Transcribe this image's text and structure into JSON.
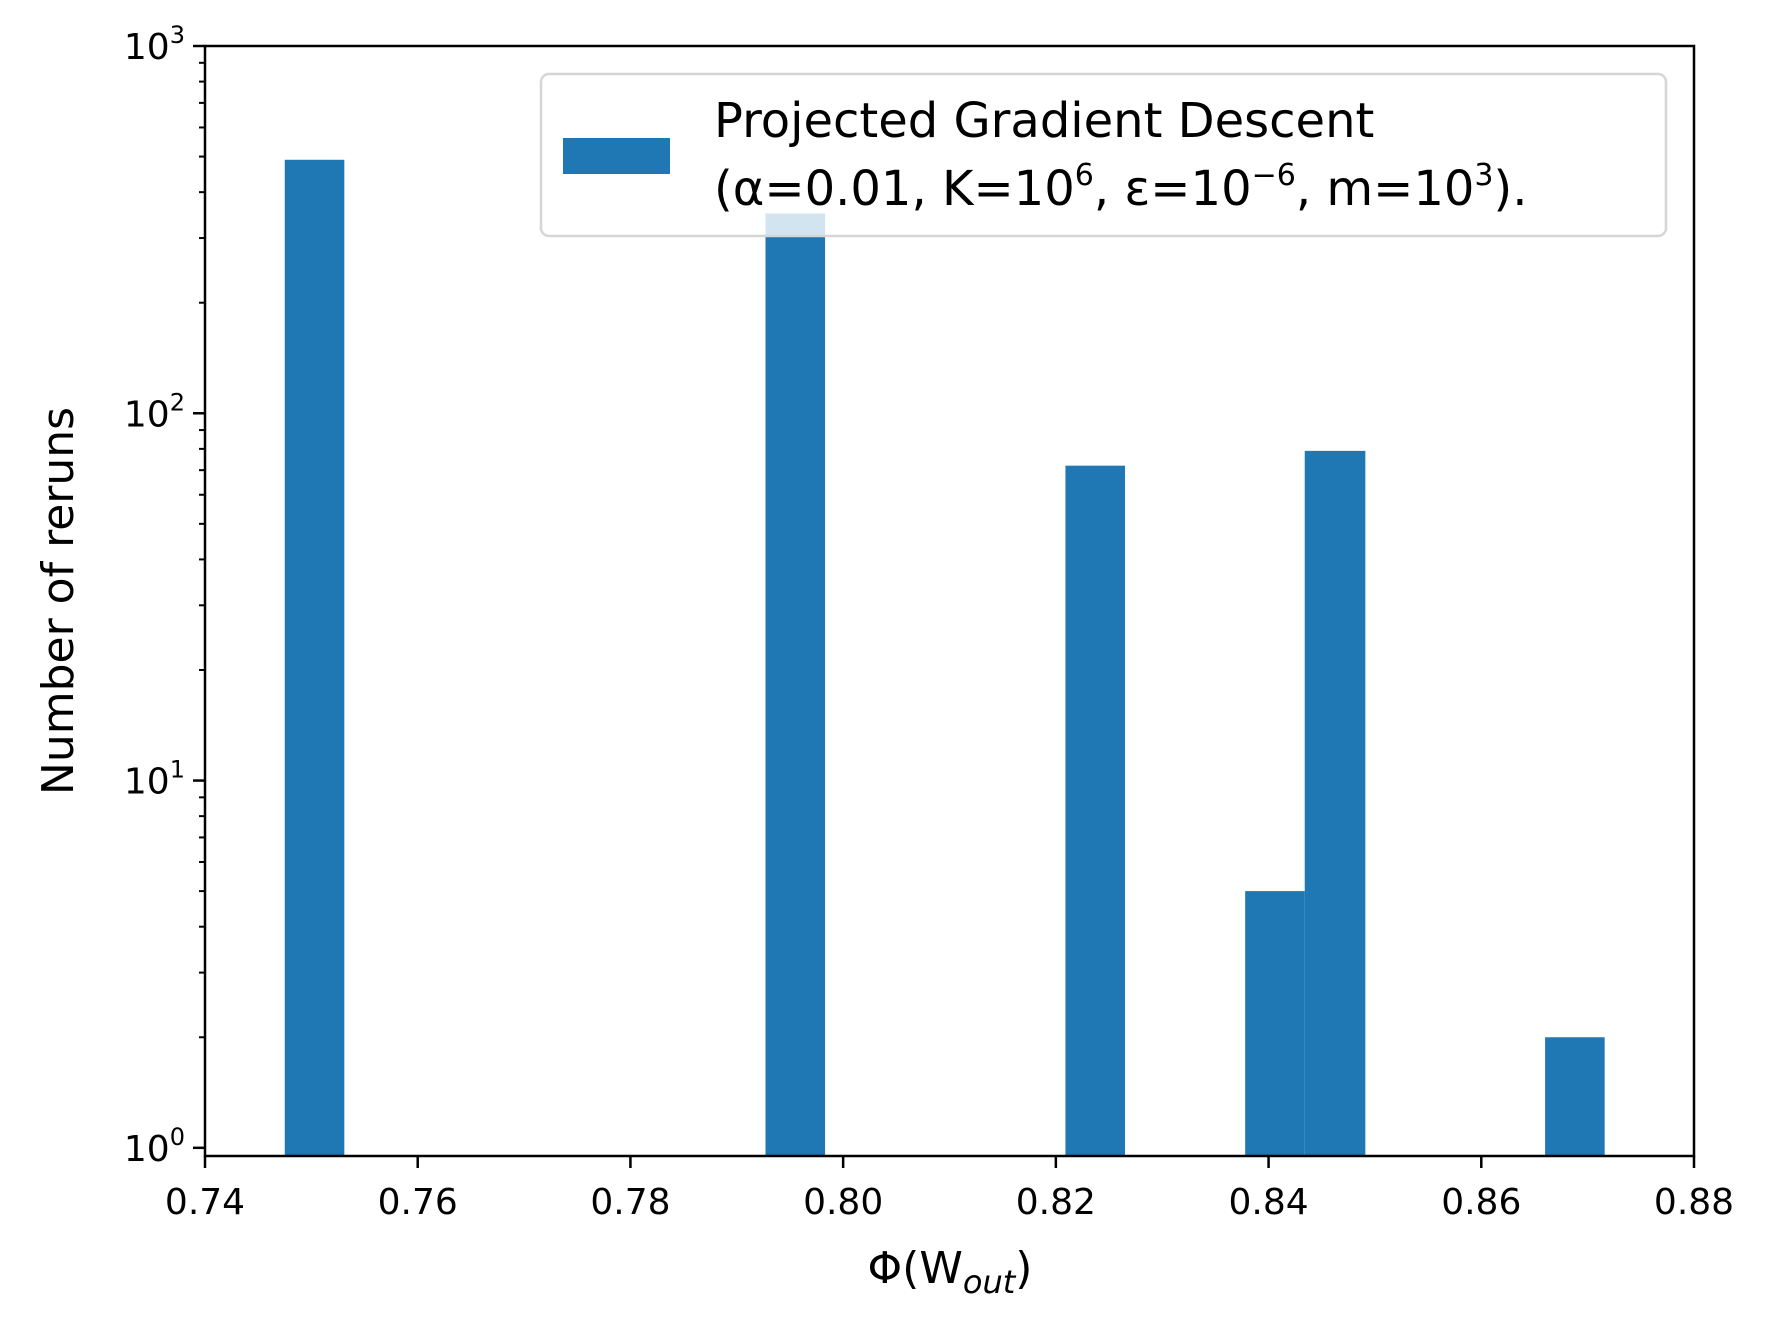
{
  "chart_data": {
    "type": "bar",
    "title": "",
    "xlabel": "Φ(W",
    "xlabel_sub": "out",
    "xlabel_close": ")",
    "ylabel": "Number of reruns",
    "xlim": [
      0.74,
      0.88
    ],
    "ylim": [
      0.95,
      1000
    ],
    "yscale": "log",
    "grid": false,
    "legend_position": "top-right",
    "bar_color": "#1f77b4",
    "x_ticks": [
      "0.74",
      "0.76",
      "0.78",
      "0.80",
      "0.82",
      "0.84",
      "0.86",
      "0.88"
    ],
    "x_tick_values": [
      0.74,
      0.76,
      0.78,
      0.8,
      0.82,
      0.84,
      0.86,
      0.88
    ],
    "y_ticks": [
      {
        "base": "10",
        "exp": "0",
        "value": 1
      },
      {
        "base": "10",
        "exp": "1",
        "value": 10
      },
      {
        "base": "10",
        "exp": "2",
        "value": 100
      },
      {
        "base": "10",
        "exp": "3",
        "value": 1000
      }
    ],
    "bins": [
      {
        "x0": 0.7475,
        "x1": 0.7531,
        "count": 490
      },
      {
        "x0": 0.7927,
        "x1": 0.7983,
        "count": 350
      },
      {
        "x0": 0.8209,
        "x1": 0.8265,
        "count": 72
      },
      {
        "x0": 0.8378,
        "x1": 0.8434,
        "count": 5
      },
      {
        "x0": 0.8434,
        "x1": 0.8491,
        "count": 79
      },
      {
        "x0": 0.866,
        "x1": 0.8716,
        "count": 2
      }
    ],
    "legend": {
      "line1": "Projected Gradient Descent",
      "line2_parts": [
        "(α=0.01, K=10",
        "6",
        ", ε=10",
        "−6",
        ", m=10",
        "3",
        ")."
      ]
    }
  }
}
